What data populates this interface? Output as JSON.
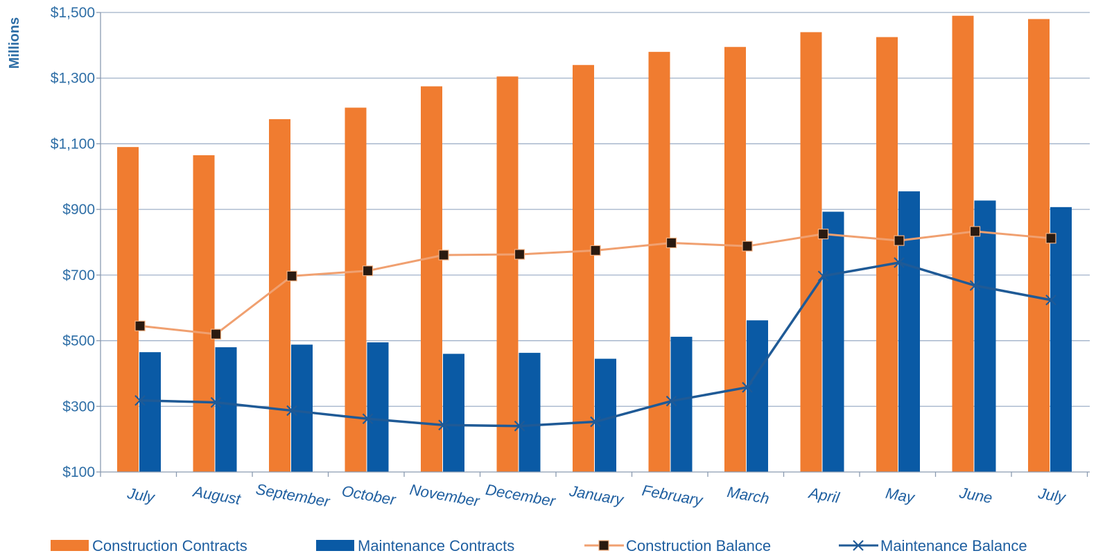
{
  "chart_data": {
    "type": "bar",
    "ylabel": "Millions",
    "ylim": [
      100,
      1500
    ],
    "yticks": [
      "$100",
      "$300",
      "$500",
      "$700",
      "$900",
      "$1,100",
      "$1,300",
      "$1,500"
    ],
    "ytick_values": [
      100,
      300,
      500,
      700,
      900,
      1100,
      1300,
      1500
    ],
    "grid": true,
    "legend_position": "bottom",
    "categories": [
      "July",
      "August",
      "September",
      "October",
      "November",
      "December",
      "January",
      "February",
      "March",
      "April",
      "May",
      "June",
      "July"
    ],
    "bar_series": [
      {
        "name": "Construction Contracts",
        "color": "#f07c30",
        "values": [
          1090,
          1065,
          1175,
          1210,
          1275,
          1305,
          1340,
          1380,
          1395,
          1440,
          1425,
          1490,
          1480
        ]
      },
      {
        "name": "Maintenance Contracts",
        "color": "#0a5aa5",
        "values": [
          465,
          480,
          488,
          495,
          460,
          463,
          445,
          512,
          562,
          893,
          955,
          927,
          907
        ]
      }
    ],
    "line_series": [
      {
        "name": "Construction Balance",
        "color": "#f0a070",
        "marker": "square",
        "values": [
          545,
          520,
          697,
          713,
          761,
          763,
          775,
          798,
          788,
          825,
          805,
          833,
          812
        ]
      },
      {
        "name": "Maintenance Balance",
        "color": "#1f5a96",
        "marker": "x",
        "values": [
          318,
          312,
          287,
          262,
          243,
          240,
          253,
          316,
          358,
          697,
          738,
          668,
          624
        ]
      }
    ]
  }
}
